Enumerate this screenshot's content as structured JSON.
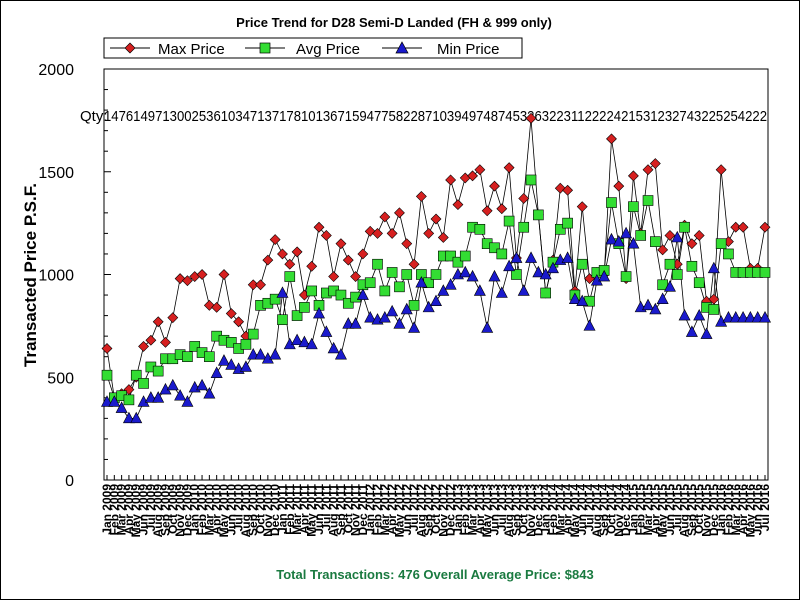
{
  "chart_data": {
    "type": "line",
    "title": "Price Trend for D28 Semi-D Landed (FH & 999 only)",
    "ylabel": "Transacted Price P.S.F.",
    "ylim": [
      0,
      2000
    ],
    "yticks": [
      0,
      500,
      1000,
      1500,
      2000
    ],
    "qty_label": "Qty:",
    "qty_values": "1476149713002536103471371781013671594775822871039497487453263223112222421531232743225254222",
    "legend_position": "top",
    "footer": "Total Transactions: 476 Overall Average Price: $843",
    "colors": {
      "max": "#d62020",
      "avg": "#33dd33",
      "min": "#1a1acc"
    },
    "x_labels": [
      "Jan 2009",
      "Feb 2009",
      "Mar 2009",
      "Apr 2009",
      "May 2009",
      "Jun 2009",
      "Jul 2009",
      "Aug 2009",
      "Sep 2009",
      "Oct 2009",
      "Nov 2009",
      "Dec 2009",
      "Jan 2010",
      "Feb 2010",
      "Mar 2010",
      "Apr 2010",
      "May 2010",
      "Jun 2010",
      "Jul 2010",
      "Aug 2010",
      "Sep 2010",
      "Oct 2010",
      "Nov 2010",
      "Dec 2010",
      "Jan 2011",
      "Feb 2011",
      "Mar 2011",
      "Apr 2011",
      "May 2011",
      "Jun 2011",
      "Jul 2011",
      "Aug 2011",
      "Sep 2011",
      "Oct 2011",
      "Nov 2011",
      "Dec 2011",
      "Jan 2012",
      "Feb 2012",
      "Mar 2012",
      "Apr 2012",
      "May 2012",
      "Jun 2012",
      "Jul 2012",
      "Aug 2012",
      "Sep 2012",
      "Oct 2012",
      "Nov 2012",
      "Dec 2012",
      "Jan 2013",
      "Feb 2013",
      "Mar 2013",
      "Apr 2013",
      "May 2013",
      "Jun 2013",
      "Jul 2013",
      "Aug 2013",
      "Sep 2013",
      "Oct 2013",
      "Nov 2013",
      "Dec 2013",
      "Jan 2014",
      "Feb 2014",
      "Mar 2014",
      "Apr 2014",
      "May 2014",
      "Jun 2014",
      "Jul 2014",
      "Aug 2014",
      "Sep 2014",
      "Oct 2014",
      "Nov 2014",
      "Dec 2014",
      "Jan 2015",
      "Feb 2015",
      "Mar 2015",
      "Apr 2015",
      "May 2015",
      "Jun 2015",
      "Jul 2015",
      "Aug 2015",
      "Sep 2015",
      "Oct 2015",
      "Nov 2015",
      "Dec 2015",
      "Jan 2016",
      "Feb 2016",
      "Mar 2016",
      "Apr 2016",
      "May 2016",
      "Jun 2016",
      "Jul 2016"
    ],
    "series": [
      {
        "name": "Max Price",
        "marker": "diamond",
        "values": [
          640,
          400,
          420,
          440,
          500,
          650,
          680,
          770,
          670,
          790,
          980,
          970,
          990,
          1000,
          850,
          840,
          1000,
          810,
          770,
          700,
          950,
          950,
          1070,
          1170,
          1100,
          1050,
          1110,
          900,
          1040,
          1230,
          1190,
          990,
          1150,
          1070,
          990,
          1100,
          1210,
          1200,
          1280,
          1200,
          1300,
          1150,
          1050,
          1380,
          1200,
          1270,
          1180,
          1460,
          1340,
          1470,
          1480,
          1510,
          1310,
          1430,
          1320,
          1520,
          1080,
          1370,
          1760,
          1290,
          910,
          1070,
          1420,
          1410,
          920,
          1330,
          980,
          1010,
          1000,
          1660,
          1430,
          980,
          1480,
          1200,
          1510,
          1540,
          1120,
          1190,
          1050,
          1240,
          1150,
          1190,
          870,
          880,
          1510,
          1160,
          1230,
          1230,
          1030,
          1030,
          1230
        ]
      },
      {
        "name": "Avg Price",
        "marker": "square",
        "values": [
          510,
          400,
          410,
          390,
          510,
          470,
          550,
          530,
          590,
          590,
          610,
          600,
          650,
          620,
          600,
          700,
          680,
          670,
          640,
          660,
          710,
          850,
          860,
          880,
          780,
          990,
          800,
          840,
          920,
          850,
          910,
          920,
          900,
          860,
          890,
          950,
          960,
          1050,
          920,
          1010,
          940,
          1000,
          850,
          1000,
          960,
          1000,
          1090,
          1090,
          1060,
          1090,
          1230,
          1220,
          1150,
          1130,
          1100,
          1260,
          1000,
          1230,
          1460,
          1290,
          910,
          1060,
          1220,
          1250,
          900,
          1050,
          870,
          1010,
          1020,
          1350,
          1150,
          990,
          1330,
          1190,
          1360,
          1160,
          950,
          1050,
          1000,
          1230,
          1040,
          960,
          840,
          830,
          1150,
          1100,
          1010,
          1010,
          1010,
          1010,
          1010
        ]
      },
      {
        "name": "Min Price",
        "marker": "triangle",
        "values": [
          380,
          380,
          350,
          300,
          300,
          380,
          400,
          400,
          440,
          460,
          410,
          380,
          450,
          460,
          420,
          520,
          580,
          560,
          540,
          550,
          610,
          610,
          590,
          610,
          910,
          660,
          680,
          670,
          660,
          810,
          720,
          640,
          610,
          760,
          760,
          900,
          790,
          780,
          790,
          820,
          760,
          830,
          740,
          960,
          840,
          870,
          920,
          950,
          1000,
          1010,
          990,
          920,
          740,
          990,
          910,
          1040,
          1080,
          920,
          1080,
          1010,
          1000,
          1030,
          1070,
          1080,
          880,
          870,
          750,
          970,
          990,
          1170,
          1160,
          1200,
          1150,
          840,
          850,
          830,
          880,
          940,
          1180,
          800,
          720,
          800,
          710,
          1030,
          770,
          790,
          790,
          790,
          790,
          790,
          790
        ]
      }
    ]
  }
}
